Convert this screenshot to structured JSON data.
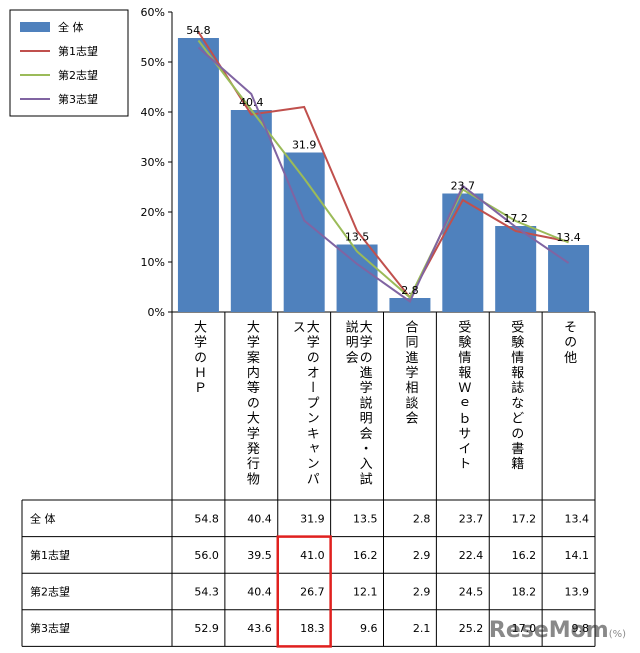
{
  "chart_data": {
    "type": "bar",
    "categories": [
      "大学のＨＰ",
      "大学案内等の大学発行物",
      "大学のオープンキャンパス",
      "大学の進学説明会・入試説明会",
      "合同進学相談会",
      "受験情報Ｗｅｂサイト",
      "受験情報誌などの書籍",
      "その他"
    ],
    "ylim": [
      0,
      60
    ],
    "yticks": [
      "0%",
      "10%",
      "20%",
      "30%",
      "40%",
      "50%",
      "60%"
    ],
    "grid": false,
    "legend_position": "top-left",
    "series": [
      {
        "name": "全 体",
        "kind": "bar",
        "color": "#4f81bd",
        "values": [
          54.8,
          40.4,
          31.9,
          13.5,
          2.8,
          23.7,
          17.2,
          13.4
        ],
        "labels": [
          "54.8",
          "40.4",
          "31.9",
          "13.5",
          "2.8",
          "23.7",
          "17.2",
          "13.4"
        ]
      },
      {
        "name": "第1志望",
        "kind": "line",
        "color": "#c0504d",
        "values": [
          56.0,
          39.5,
          41.0,
          16.2,
          2.9,
          22.4,
          16.2,
          14.1
        ],
        "labels": [
          "56.0",
          "39.5",
          "41.0",
          "16.2",
          "2.9",
          "22.4",
          "16.2",
          "14.1"
        ]
      },
      {
        "name": "第2志望",
        "kind": "line",
        "color": "#9bbb59",
        "values": [
          54.3,
          40.4,
          26.7,
          12.1,
          2.9,
          24.5,
          18.2,
          13.9
        ],
        "labels": [
          "54.3",
          "40.4",
          "26.7",
          "12.1",
          "2.9",
          "24.5",
          "18.2",
          "13.9"
        ]
      },
      {
        "name": "第3志望",
        "kind": "line",
        "color": "#8064a2",
        "values": [
          52.9,
          43.6,
          18.3,
          9.6,
          2.1,
          25.2,
          17.0,
          9.8
        ],
        "labels": [
          "52.9",
          "43.6",
          "18.3",
          "9.6",
          "2.1",
          "25.2",
          "17.0",
          "9.8"
        ]
      }
    ],
    "highlight": {
      "category_index": 2,
      "series_indices": [
        1,
        2,
        3
      ],
      "color": "#e0201e"
    }
  },
  "watermark": {
    "text": "ReseMom",
    "suffix": "(%)"
  }
}
